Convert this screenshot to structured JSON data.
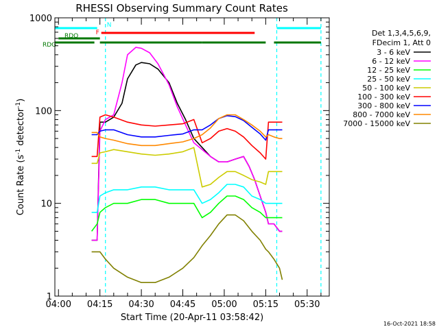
{
  "chart_data": {
    "type": "line",
    "title": "RHESSI Observing Summary Count Rates",
    "xlabel": "Start Time (20-Apr-11 03:58:42)",
    "ylabel_main": "Count Rate (s",
    "ylabel_sup1": "-1",
    "ylabel_mid": " detector",
    "ylabel_sup2": "-1",
    "ylabel_end": ")",
    "yscale": "log",
    "ylim": [
      1,
      1000
    ],
    "xlim": [
      "03:58:42",
      "05:38:00"
    ],
    "x_ticks": [
      "04:00",
      "04:15",
      "04:30",
      "04:45",
      "05:00",
      "05:15",
      "05:30"
    ],
    "y_ticks": [
      "1",
      "10",
      "100",
      "1000"
    ],
    "footer_date": "16-Oct-2021 18:58",
    "legend": {
      "header1": "Det 1,3,4,5,6,9,",
      "header2": "FDecim 1, Att 0",
      "entries": [
        {
          "label": "3 - 6 keV",
          "color": "#000000"
        },
        {
          "label": "6 - 12 keV",
          "color": "#ff00ff"
        },
        {
          "label": "12 - 25 keV",
          "color": "#00ff00"
        },
        {
          "label": "25 - 50 keV",
          "color": "#00ffff"
        },
        {
          "label": "50 - 100 keV",
          "color": "#cccc00"
        },
        {
          "label": "100 - 300 keV",
          "color": "#ff0000"
        },
        {
          "label": "300 - 800 keV",
          "color": "#0000ff"
        },
        {
          "label": "800 - 7000 keV",
          "color": "#ff8800"
        },
        {
          "label": "7000 - 15000 keV",
          "color": "#808000"
        }
      ]
    },
    "flags": [
      {
        "label": "N",
        "color": "#00ffff",
        "spans": [
          [
            "03:58:42",
            "04:14:00"
          ],
          [
            "05:19:00",
            "05:35:00"
          ]
        ]
      },
      {
        "label": "F",
        "color": "#ff0000",
        "spans": [
          [
            "04:15:30",
            "05:11:00"
          ]
        ]
      },
      {
        "label": "RDO",
        "color": "#007700",
        "spans": [
          [
            "04:00:00",
            "04:15:00"
          ]
        ]
      },
      {
        "label": "RDG",
        "color": "#007700",
        "spans": [
          [
            "03:58:42",
            "04:13:00"
          ],
          [
            "04:15:00",
            "04:52:00"
          ],
          [
            "04:52:00",
            "05:15:00"
          ],
          [
            "05:18:00",
            "05:35:00"
          ]
        ]
      }
    ],
    "vertical_markers": [
      {
        "color": "#00ffff",
        "x": "04:17:00"
      },
      {
        "color": "#00ffff",
        "x": "05:19:00"
      },
      {
        "color": "#00ffff",
        "x": "05:35:00"
      }
    ],
    "series": [
      {
        "name": "3 - 6 keV",
        "color": "#000000",
        "points": [
          [
            "04:12",
            4
          ],
          [
            "04:14",
            4
          ],
          [
            "04:15",
            75
          ],
          [
            "04:17",
            75
          ],
          [
            "04:20",
            85
          ],
          [
            "04:23",
            120
          ],
          [
            "04:25",
            220
          ],
          [
            "04:28",
            310
          ],
          [
            "04:30",
            330
          ],
          [
            "04:33",
            320
          ],
          [
            "04:36",
            280
          ],
          [
            "04:40",
            200
          ],
          [
            "04:43",
            120
          ],
          [
            "04:46",
            80
          ],
          [
            "04:49",
            50
          ],
          [
            "04:52",
            40
          ],
          [
            "04:55",
            32
          ],
          [
            "04:58",
            28
          ],
          [
            "05:01",
            28
          ],
          [
            "05:04",
            30
          ],
          [
            "05:07",
            32
          ],
          [
            "05:09",
            25
          ],
          [
            "05:11",
            18
          ],
          [
            "05:13",
            12
          ],
          [
            "05:15",
            8
          ],
          [
            "05:16",
            6
          ],
          [
            "05:18",
            6
          ],
          [
            "05:20",
            5
          ],
          [
            "05:21",
            5
          ]
        ]
      },
      {
        "name": "6 - 12 keV",
        "color": "#ff00ff",
        "points": [
          [
            "04:12",
            4
          ],
          [
            "04:14",
            4
          ],
          [
            "04:15",
            60
          ],
          [
            "04:17",
            80
          ],
          [
            "04:20",
            90
          ],
          [
            "04:23",
            200
          ],
          [
            "04:25",
            400
          ],
          [
            "04:28",
            480
          ],
          [
            "04:30",
            470
          ],
          [
            "04:33",
            420
          ],
          [
            "04:36",
            320
          ],
          [
            "04:40",
            190
          ],
          [
            "04:43",
            110
          ],
          [
            "04:46",
            70
          ],
          [
            "04:49",
            45
          ],
          [
            "04:52",
            38
          ],
          [
            "04:55",
            32
          ],
          [
            "04:58",
            28
          ],
          [
            "05:01",
            28
          ],
          [
            "05:04",
            30
          ],
          [
            "05:07",
            32
          ],
          [
            "05:09",
            25
          ],
          [
            "05:11",
            18
          ],
          [
            "05:13",
            12
          ],
          [
            "05:15",
            8
          ],
          [
            "05:16",
            6
          ],
          [
            "05:18",
            6
          ],
          [
            "05:20",
            5
          ],
          [
            "05:21",
            5
          ]
        ]
      },
      {
        "name": "12 - 25 keV",
        "color": "#00ff00",
        "points": [
          [
            "04:12",
            5
          ],
          [
            "04:14",
            6
          ],
          [
            "04:15",
            8
          ],
          [
            "04:17",
            9
          ],
          [
            "04:20",
            10
          ],
          [
            "04:25",
            10
          ],
          [
            "04:30",
            11
          ],
          [
            "04:35",
            11
          ],
          [
            "04:40",
            10
          ],
          [
            "04:45",
            10
          ],
          [
            "04:49",
            10
          ],
          [
            "04:52",
            7
          ],
          [
            "04:55",
            8
          ],
          [
            "04:58",
            10
          ],
          [
            "05:01",
            12
          ],
          [
            "05:04",
            12
          ],
          [
            "05:07",
            11
          ],
          [
            "05:10",
            9
          ],
          [
            "05:13",
            8
          ],
          [
            "05:15",
            7
          ],
          [
            "05:16",
            7
          ],
          [
            "05:18",
            7
          ],
          [
            "05:20",
            7
          ],
          [
            "05:21",
            7
          ]
        ]
      },
      {
        "name": "25 - 50 keV",
        "color": "#00ffff",
        "points": [
          [
            "04:12",
            8
          ],
          [
            "04:14",
            8
          ],
          [
            "04:15",
            12
          ],
          [
            "04:17",
            13
          ],
          [
            "04:20",
            14
          ],
          [
            "04:25",
            14
          ],
          [
            "04:30",
            15
          ],
          [
            "04:35",
            15
          ],
          [
            "04:40",
            14
          ],
          [
            "04:45",
            14
          ],
          [
            "04:49",
            14
          ],
          [
            "04:52",
            10
          ],
          [
            "04:55",
            11
          ],
          [
            "04:58",
            13
          ],
          [
            "05:01",
            16
          ],
          [
            "05:04",
            16
          ],
          [
            "05:07",
            15
          ],
          [
            "05:10",
            12
          ],
          [
            "05:13",
            11
          ],
          [
            "05:15",
            10
          ],
          [
            "05:16",
            10
          ],
          [
            "05:18",
            10
          ],
          [
            "05:20",
            10
          ],
          [
            "05:21",
            10
          ]
        ]
      },
      {
        "name": "50 - 100 keV",
        "color": "#cccc00",
        "points": [
          [
            "04:12",
            27
          ],
          [
            "04:14",
            27
          ],
          [
            "04:15",
            35
          ],
          [
            "04:17",
            36
          ],
          [
            "04:20",
            38
          ],
          [
            "04:25",
            36
          ],
          [
            "04:30",
            34
          ],
          [
            "04:35",
            33
          ],
          [
            "04:40",
            34
          ],
          [
            "04:45",
            36
          ],
          [
            "04:49",
            40
          ],
          [
            "04:52",
            15
          ],
          [
            "04:55",
            16
          ],
          [
            "04:58",
            19
          ],
          [
            "05:01",
            22
          ],
          [
            "05:04",
            22
          ],
          [
            "05:07",
            20
          ],
          [
            "05:10",
            18
          ],
          [
            "05:13",
            17
          ],
          [
            "05:15",
            16
          ],
          [
            "05:16",
            22
          ],
          [
            "05:18",
            22
          ],
          [
            "05:20",
            22
          ],
          [
            "05:21",
            22
          ]
        ]
      },
      {
        "name": "100 - 300 keV",
        "color": "#ff0000",
        "points": [
          [
            "04:12",
            32
          ],
          [
            "04:14",
            32
          ],
          [
            "04:15",
            85
          ],
          [
            "04:17",
            90
          ],
          [
            "04:20",
            85
          ],
          [
            "04:25",
            75
          ],
          [
            "04:30",
            70
          ],
          [
            "04:35",
            68
          ],
          [
            "04:40",
            70
          ],
          [
            "04:45",
            72
          ],
          [
            "04:49",
            80
          ],
          [
            "04:52",
            45
          ],
          [
            "04:55",
            50
          ],
          [
            "04:58",
            60
          ],
          [
            "05:01",
            64
          ],
          [
            "05:04",
            60
          ],
          [
            "05:07",
            52
          ],
          [
            "05:10",
            42
          ],
          [
            "05:13",
            35
          ],
          [
            "05:15",
            30
          ],
          [
            "05:16",
            75
          ],
          [
            "05:18",
            75
          ],
          [
            "05:20",
            75
          ],
          [
            "05:21",
            75
          ]
        ]
      },
      {
        "name": "300 - 800 keV",
        "color": "#0000ff",
        "points": [
          [
            "04:12",
            55
          ],
          [
            "04:14",
            55
          ],
          [
            "04:15",
            60
          ],
          [
            "04:17",
            62
          ],
          [
            "04:20",
            62
          ],
          [
            "04:25",
            55
          ],
          [
            "04:30",
            52
          ],
          [
            "04:35",
            52
          ],
          [
            "04:40",
            54
          ],
          [
            "04:45",
            56
          ],
          [
            "04:49",
            62
          ],
          [
            "04:52",
            62
          ],
          [
            "04:55",
            70
          ],
          [
            "04:58",
            82
          ],
          [
            "05:01",
            88
          ],
          [
            "05:04",
            86
          ],
          [
            "05:07",
            78
          ],
          [
            "05:10",
            66
          ],
          [
            "05:13",
            56
          ],
          [
            "05:15",
            48
          ],
          [
            "05:16",
            62
          ],
          [
            "05:18",
            62
          ],
          [
            "05:20",
            62
          ],
          [
            "05:21",
            62
          ]
        ]
      },
      {
        "name": "800 - 7000 keV",
        "color": "#ff8800",
        "points": [
          [
            "04:12",
            58
          ],
          [
            "04:14",
            58
          ],
          [
            "04:15",
            52
          ],
          [
            "04:17",
            50
          ],
          [
            "04:20",
            48
          ],
          [
            "04:25",
            44
          ],
          [
            "04:30",
            42
          ],
          [
            "04:35",
            42
          ],
          [
            "04:40",
            44
          ],
          [
            "04:45",
            46
          ],
          [
            "04:49",
            50
          ],
          [
            "04:52",
            55
          ],
          [
            "04:55",
            65
          ],
          [
            "04:58",
            82
          ],
          [
            "05:01",
            90
          ],
          [
            "05:04",
            90
          ],
          [
            "05:07",
            80
          ],
          [
            "05:10",
            70
          ],
          [
            "05:13",
            60
          ],
          [
            "05:15",
            52
          ],
          [
            "05:16",
            55
          ],
          [
            "05:18",
            52
          ],
          [
            "05:20",
            50
          ],
          [
            "05:21",
            50
          ]
        ]
      },
      {
        "name": "7000 - 15000 keV",
        "color": "#808000",
        "points": [
          [
            "04:12",
            3
          ],
          [
            "04:14",
            3
          ],
          [
            "04:15",
            3
          ],
          [
            "04:17",
            2.5
          ],
          [
            "04:20",
            2
          ],
          [
            "04:25",
            1.6
          ],
          [
            "04:30",
            1.4
          ],
          [
            "04:35",
            1.4
          ],
          [
            "04:40",
            1.6
          ],
          [
            "04:45",
            2
          ],
          [
            "04:49",
            2.6
          ],
          [
            "04:52",
            3.5
          ],
          [
            "04:55",
            4.5
          ],
          [
            "04:58",
            6
          ],
          [
            "05:01",
            7.5
          ],
          [
            "05:04",
            7.5
          ],
          [
            "05:07",
            6.5
          ],
          [
            "05:10",
            5
          ],
          [
            "05:13",
            4
          ],
          [
            "05:15",
            3.2
          ],
          [
            "05:16",
            3
          ],
          [
            "05:18",
            2.5
          ],
          [
            "05:20",
            2
          ],
          [
            "05:21",
            1.5
          ]
        ]
      }
    ]
  }
}
